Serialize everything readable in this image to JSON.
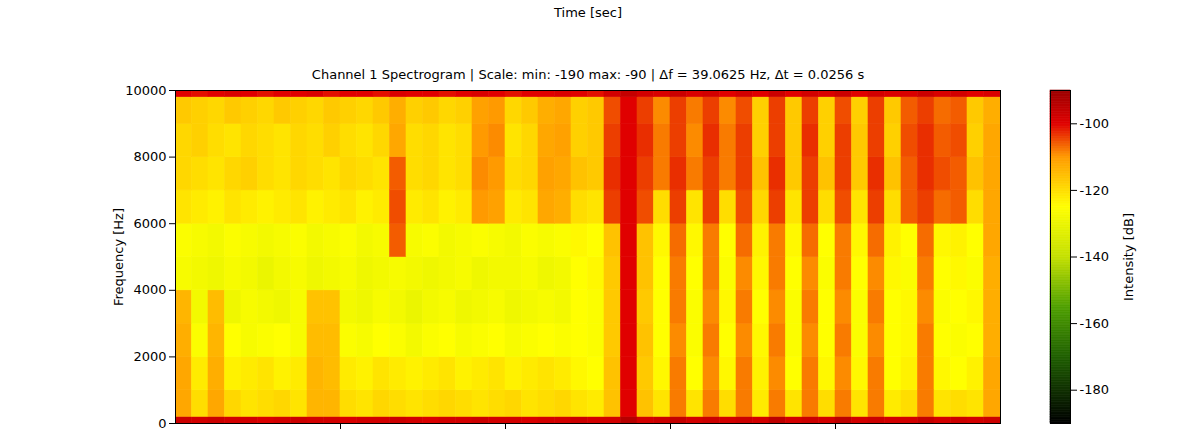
{
  "header": {
    "text": "Time [sec]"
  },
  "chart_data": {
    "type": "heatmap",
    "title": "Channel 1 Spectrogram | Scale: min: -190 max: -90 | Δf = 39.0625 Hz, Δt = 0.0256 s",
    "ylabel": "Frequency [Hz]",
    "xlim": [
      0,
      5
    ],
    "xticks": [
      1,
      2,
      3,
      4
    ],
    "ylim": [
      0,
      10000
    ],
    "yticks": [
      0,
      2000,
      4000,
      6000,
      8000,
      10000
    ],
    "tick_labels": "y",
    "time_bins": [
      0,
      0.1,
      0.2,
      0.3,
      0.4,
      0.5,
      0.6,
      0.7,
      0.8,
      0.9,
      1,
      1.1,
      1.2,
      1.3,
      1.4,
      1.5,
      1.6,
      1.7,
      1.8,
      1.9,
      2,
      2.1,
      2.2,
      2.3,
      2.4,
      2.5,
      2.6,
      2.7,
      2.8,
      2.9,
      3,
      3.1,
      3.2,
      3.3,
      3.4,
      3.5,
      3.6,
      3.7,
      3.8,
      3.9,
      4,
      4.1,
      4.2,
      4.3,
      4.4,
      4.5,
      4.6,
      4.7,
      4.8,
      4.9,
      5
    ],
    "frequency_bins": [
      0,
      200,
      1000,
      2000,
      3000,
      4000,
      5000,
      6000,
      7000,
      8000,
      9000,
      9800,
      10000
    ],
    "intensity": [
      [
        -97,
        -98,
        -97,
        -98,
        -98,
        -99,
        -98,
        -97,
        -98,
        -98,
        -99,
        -98,
        -98,
        -97,
        -98,
        -99,
        -98,
        -98,
        -97,
        -98,
        -98,
        -99,
        -98,
        -98,
        -97,
        -98,
        -98,
        -94,
        -98,
        -97,
        -96,
        -98,
        -97,
        -98,
        -97,
        -98,
        -95,
        -98,
        -97,
        -98,
        -95,
        -98,
        -97,
        -98,
        -98,
        -96,
        -98,
        -97,
        -98,
        -97
      ],
      [
        -112,
        -120,
        -112,
        -119,
        -121,
        -120,
        -119,
        -121,
        -114,
        -114,
        -120,
        -121,
        -119,
        -120,
        -121,
        -120,
        -119,
        -120,
        -121,
        -120,
        -119,
        -121,
        -120,
        -119,
        -121,
        -122,
        -116,
        -100,
        -116,
        -121,
        -108,
        -121,
        -108,
        -120,
        -108,
        -122,
        -108,
        -121,
        -108,
        -120,
        -108,
        -121,
        -108,
        -122,
        -120,
        -108,
        -121,
        -120,
        -121,
        -112
      ],
      [
        -112,
        -122,
        -113,
        -123,
        -122,
        -121,
        -123,
        -122,
        -114,
        -115,
        -122,
        -123,
        -121,
        -122,
        -123,
        -122,
        -121,
        -123,
        -122,
        -121,
        -123,
        -122,
        -121,
        -122,
        -124,
        -125,
        -116,
        -100,
        -117,
        -124,
        -108,
        -125,
        -109,
        -124,
        -108,
        -123,
        -109,
        -125,
        -108,
        -124,
        -109,
        -124,
        -108,
        -125,
        -123,
        -108,
        -124,
        -125,
        -123,
        -112
      ],
      [
        -113,
        -126,
        -114,
        -125,
        -127,
        -126,
        -125,
        -127,
        -115,
        -115,
        -126,
        -127,
        -125,
        -126,
        -128,
        -126,
        -125,
        -127,
        -126,
        -125,
        -127,
        -126,
        -125,
        -126,
        -125,
        -126,
        -117,
        -100,
        -116,
        -125,
        -109,
        -126,
        -108,
        -125,
        -109,
        -124,
        -108,
        -126,
        -109,
        -125,
        -108,
        -126,
        -109,
        -125,
        -124,
        -108,
        -125,
        -126,
        -125,
        -113
      ],
      [
        -114,
        -128,
        -115,
        -129,
        -127,
        -128,
        -129,
        -127,
        -116,
        -116,
        -128,
        -129,
        -127,
        -128,
        -130,
        -128,
        -127,
        -129,
        -128,
        -127,
        -129,
        -128,
        -127,
        -128,
        -125,
        -126,
        -117,
        -100,
        -117,
        -125,
        -108,
        -126,
        -109,
        -124,
        -108,
        -125,
        -109,
        -126,
        -108,
        -125,
        -109,
        -126,
        -108,
        -125,
        -124,
        -109,
        -126,
        -125,
        -124,
        -113
      ],
      [
        -127,
        -128,
        -129,
        -127,
        -128,
        -130,
        -128,
        -127,
        -129,
        -128,
        -127,
        -129,
        -128,
        -127,
        -128,
        -129,
        -128,
        -127,
        -129,
        -128,
        -128,
        -127,
        -129,
        -128,
        -125,
        -124,
        -117,
        -100,
        -116,
        -125,
        -108,
        -125,
        -108,
        -126,
        -109,
        -124,
        -108,
        -125,
        -109,
        -126,
        -108,
        -125,
        -109,
        -124,
        -126,
        -108,
        -125,
        -124,
        -126,
        -113
      ],
      [
        -126,
        -127,
        -128,
        -126,
        -127,
        -128,
        -127,
        -126,
        -128,
        -127,
        -126,
        -128,
        -127,
        -106,
        -127,
        -126,
        -128,
        -127,
        -126,
        -127,
        -128,
        -126,
        -127,
        -126,
        -124,
        -125,
        -116,
        -100,
        -116,
        -124,
        -107,
        -124,
        -108,
        -125,
        -107,
        -123,
        -108,
        -124,
        -107,
        -125,
        -108,
        -124,
        -107,
        -123,
        -125,
        -107,
        -124,
        -123,
        -125,
        -112
      ],
      [
        -121,
        -122,
        -123,
        -121,
        -122,
        -123,
        -122,
        -121,
        -123,
        -122,
        -121,
        -123,
        -122,
        -105,
        -122,
        -121,
        -123,
        -122,
        -110,
        -111,
        -122,
        -121,
        -112,
        -113,
        -120,
        -121,
        -104,
        -100,
        -105,
        -120,
        -104,
        -121,
        -104,
        -120,
        -105,
        -119,
        -104,
        -121,
        -104,
        -120,
        -105,
        -121,
        -104,
        -120,
        -106,
        -104,
        -107,
        -106,
        -120,
        -112
      ],
      [
        -119,
        -120,
        -121,
        -119,
        -118,
        -120,
        -121,
        -119,
        -120,
        -121,
        -119,
        -120,
        -121,
        -106,
        -120,
        -119,
        -121,
        -120,
        -109,
        -110,
        -120,
        -119,
        -111,
        -112,
        -116,
        -117,
        -103,
        -100,
        -104,
        -108,
        -103,
        -108,
        -104,
        -108,
        -104,
        -116,
        -103,
        -117,
        -104,
        -116,
        -104,
        -117,
        -103,
        -116,
        -106,
        -103,
        -105,
        -106,
        -116,
        -112
      ],
      [
        -119,
        -118,
        -120,
        -121,
        -119,
        -120,
        -121,
        -119,
        -120,
        -118,
        -120,
        -121,
        -119,
        -112,
        -120,
        -119,
        -121,
        -120,
        -110,
        -109,
        -121,
        -119,
        -112,
        -111,
        -118,
        -117,
        -104,
        -100,
        -103,
        -108,
        -104,
        -109,
        -103,
        -108,
        -104,
        -118,
        -104,
        -117,
        -103,
        -118,
        -104,
        -117,
        -104,
        -118,
        -105,
        -103,
        -106,
        -105,
        -118,
        -112
      ],
      [
        -117,
        -118,
        -119,
        -117,
        -118,
        -119,
        -117,
        -118,
        -119,
        -117,
        -118,
        -119,
        -117,
        -113,
        -118,
        -117,
        -119,
        -118,
        -111,
        -110,
        -119,
        -117,
        -113,
        -112,
        -118,
        -117,
        -105,
        -100,
        -104,
        -109,
        -104,
        -108,
        -104,
        -109,
        -105,
        -118,
        -104,
        -117,
        -104,
        -118,
        -105,
        -118,
        -104,
        -117,
        -106,
        -104,
        -107,
        -106,
        -117,
        -113
      ],
      [
        -100,
        -101,
        -100,
        -99,
        -100,
        -101,
        -100,
        -100,
        -99,
        -101,
        -100,
        -100,
        -101,
        -99,
        -100,
        -100,
        -101,
        -100,
        -99,
        -100,
        -101,
        -100,
        -100,
        -99,
        -100,
        -101,
        -98,
        -96,
        -98,
        -99,
        -97,
        -99,
        -98,
        -100,
        -98,
        -100,
        -97,
        -100,
        -98,
        -99,
        -97,
        -100,
        -98,
        -99,
        -99,
        -97,
        -99,
        -98,
        -100,
        -99
      ]
    ],
    "colorbar": {
      "label": "Intensity [dB]",
      "range": [
        -190,
        -90
      ],
      "ticks": [
        -180,
        -160,
        -140,
        -120,
        -100
      ]
    }
  }
}
